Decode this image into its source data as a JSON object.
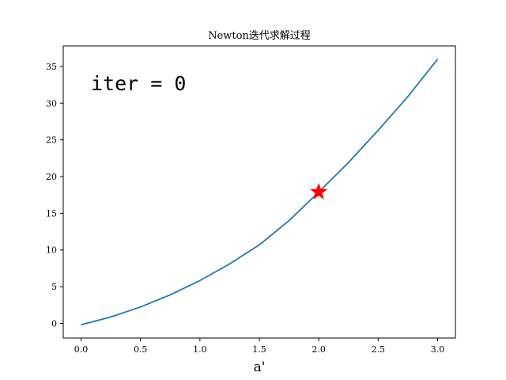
{
  "chart_data": {
    "type": "line",
    "title": "Newton迭代求解过程",
    "xlabel": "a'",
    "ylabel": "",
    "xlim": [
      -0.15,
      3.15
    ],
    "ylim": [
      -2.0,
      37.8
    ],
    "xticks": [
      0.0,
      0.5,
      1.0,
      1.5,
      2.0,
      2.5,
      3.0
    ],
    "xtick_labels": [
      "0.0",
      "0.5",
      "1.0",
      "1.5",
      "2.0",
      "2.5",
      "3.0"
    ],
    "yticks": [
      0,
      5,
      10,
      15,
      20,
      25,
      30,
      35
    ],
    "ytick_labels": [
      "0",
      "5",
      "10",
      "15",
      "20",
      "25",
      "30",
      "35"
    ],
    "grid": false,
    "annotation": "iter = 0",
    "series": [
      {
        "color": "#1f77b4",
        "x": [
          0.0,
          0.25,
          0.5,
          0.75,
          1.0,
          1.25,
          1.5,
          1.75,
          2.0,
          2.25,
          2.5,
          2.75,
          3.0
        ],
        "y": [
          -0.2,
          0.87,
          2.23,
          3.89,
          5.83,
          8.1,
          10.7,
          14.0,
          17.9,
          21.9,
          26.3,
          30.9,
          36.0
        ]
      }
    ],
    "marker": {
      "x": 2.0,
      "y": 17.9,
      "shape": "star",
      "color": "#ff0000"
    }
  }
}
